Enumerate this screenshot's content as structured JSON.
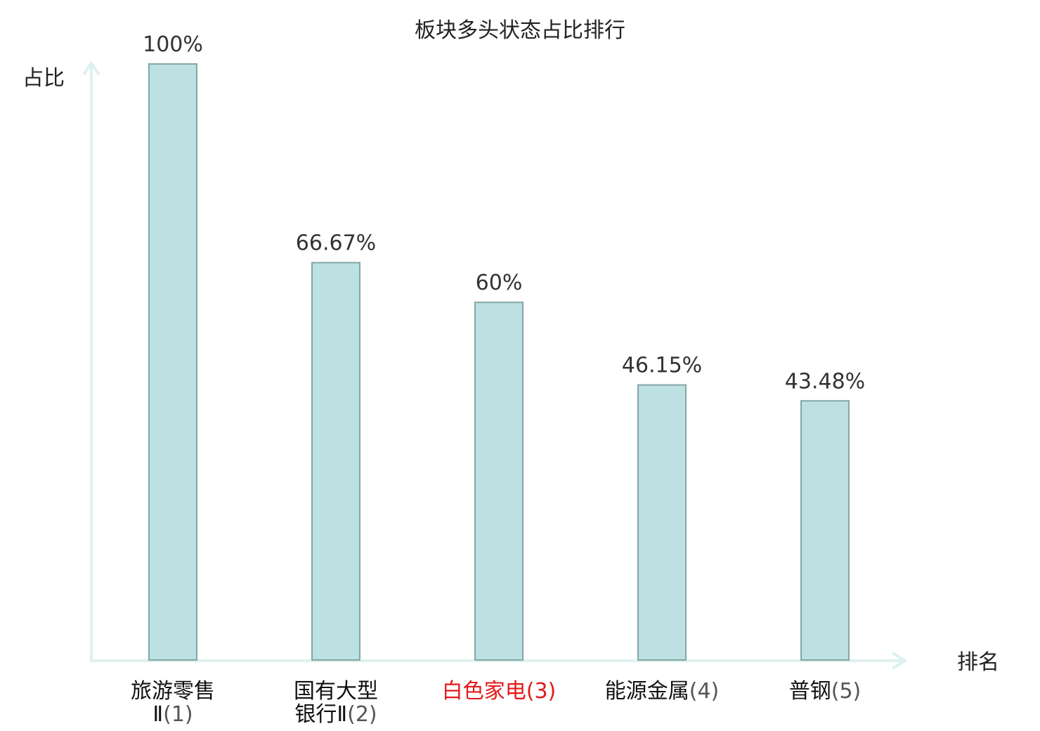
{
  "chart_data": {
    "type": "bar",
    "title": "板块多头状态占比排行",
    "ylabel": "占比",
    "xlabel": "排名",
    "ylim": [
      0,
      100
    ],
    "grid": false,
    "categories": [
      {
        "name": "旅游零售",
        "name2": "Ⅱ",
        "rank": "(1)",
        "highlight": false
      },
      {
        "name": "国有大型",
        "name2": "银行Ⅱ",
        "rank": "(2)",
        "highlight": false
      },
      {
        "name": "白色家电",
        "name2": "",
        "rank": "(3)",
        "highlight": true
      },
      {
        "name": "能源金属",
        "name2": "",
        "rank": "(4)",
        "highlight": false
      },
      {
        "name": "普钢",
        "name2": "",
        "rank": "(5)",
        "highlight": false
      }
    ],
    "values": [
      100,
      66.67,
      60,
      46.15,
      43.48
    ],
    "value_labels": [
      "100%",
      "66.67%",
      "60%",
      "46.15%",
      "43.48%"
    ],
    "colors": {
      "bar_fill": "#bde1e2",
      "bar_stroke": "#84a6a6",
      "axis": "#ddf1ee",
      "highlight_text": "#e31a1a",
      "category_text": "#111111",
      "rank_text": "#555555"
    }
  }
}
